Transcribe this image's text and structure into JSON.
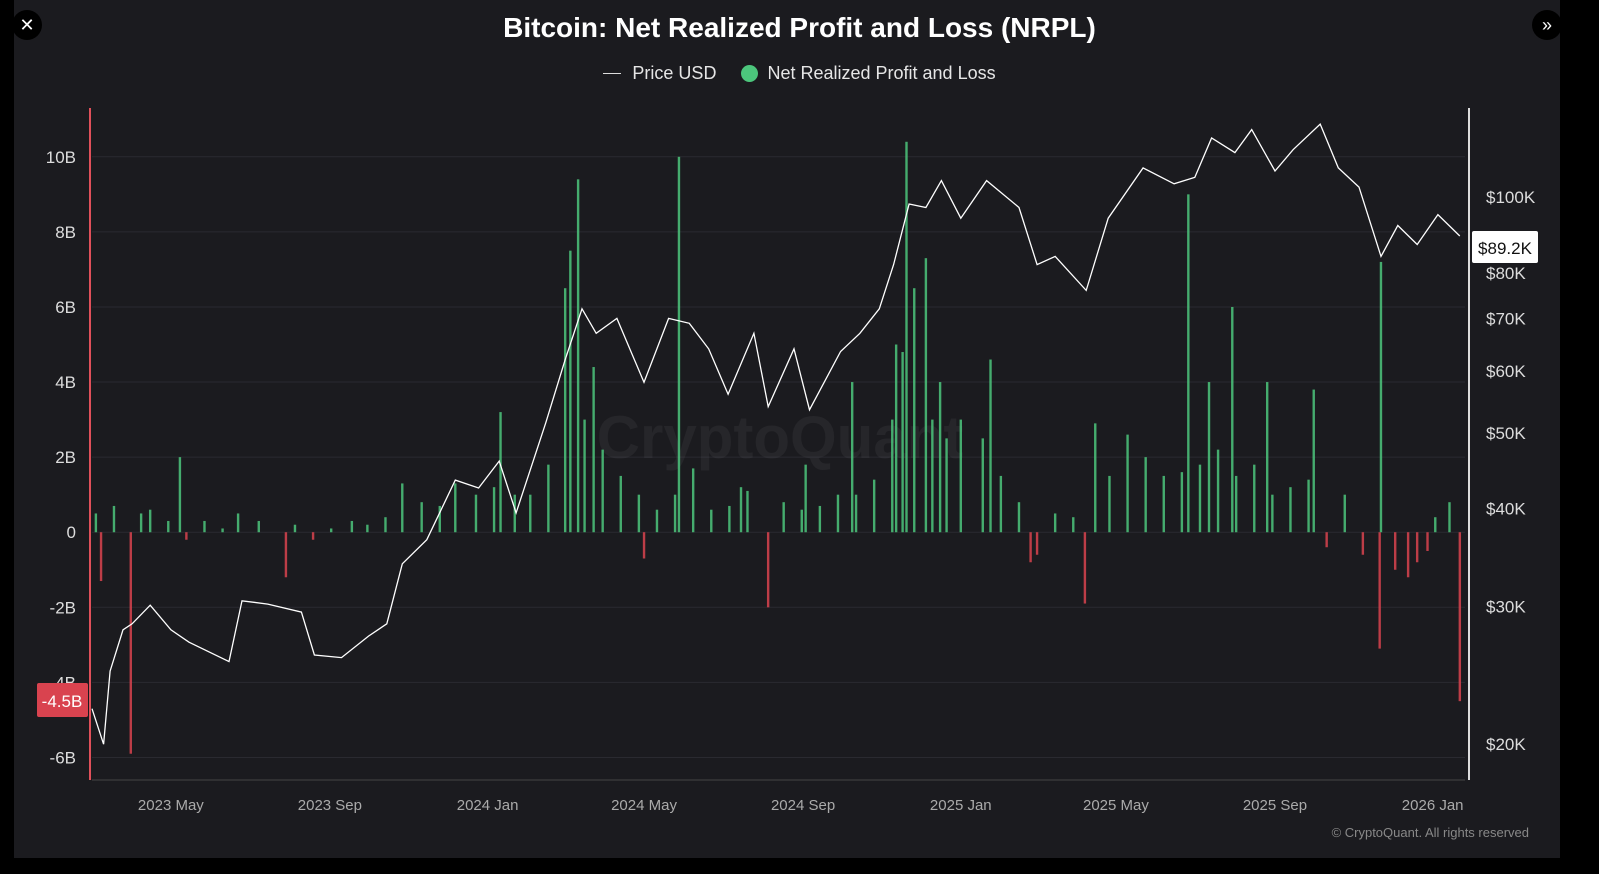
{
  "controls": {
    "close_icon": "close-icon",
    "expand_icon": "chevron-double-right-icon"
  },
  "colors": {
    "background": "#1b1b1f",
    "profit": "#4cc67c",
    "loss": "#d9434f",
    "price": "#ffffff",
    "left_axis": "#e0505a"
  },
  "watermark": "CryptoQuant",
  "copyright": "© CryptoQuant. All rights reserved",
  "chart_data": {
    "type": "bar+line",
    "title": "Bitcoin: Net Realized Profit and Loss (NRPL)",
    "legend": {
      "placement": "top",
      "entries": [
        "Price USD",
        "Net Realized Profit and Loss"
      ]
    },
    "left_axis": {
      "ticks": [
        10,
        8,
        6,
        4,
        2,
        0,
        -2,
        -4,
        -6
      ],
      "tick_labels": [
        "10B",
        "8B",
        "6B",
        "4B",
        "2B",
        "0",
        "-2B",
        "-4B",
        "-6B"
      ],
      "range": [
        -6.6,
        11.3
      ],
      "unit": "B"
    },
    "right_axis": {
      "scale": "log",
      "ticks": [
        100000,
        80000,
        70000,
        60000,
        50000,
        40000,
        30000,
        20000
      ],
      "tick_labels": [
        "$100K",
        "$80K",
        "$70K",
        "$60K",
        "$50K",
        "$40K",
        "$30K",
        "$20K"
      ],
      "range": [
        18000,
        130000
      ]
    },
    "x_axis": {
      "ticks": [
        "2023-05-01",
        "2023-09-01",
        "2024-01-01",
        "2024-05-01",
        "2024-09-01",
        "2025-01-01",
        "2025-05-01",
        "2025-09-01",
        "2026-01-01"
      ],
      "tick_labels": [
        "2023 May",
        "2023 Sep",
        "2024 Jan",
        "2024 May",
        "2024 Sep",
        "2025 Jan",
        "2025 May",
        "2025 Sep",
        "2026 Jan"
      ],
      "range": [
        "2023-03-01",
        "2026-01-26"
      ]
    },
    "grid": true,
    "current_badges": {
      "nrpl": "-4.5B",
      "price": "$89.2K"
    },
    "price": [
      [
        "2023-03-01",
        22200
      ],
      [
        "2023-03-10",
        20000
      ],
      [
        "2023-03-15",
        24800
      ],
      [
        "2023-03-25",
        28000
      ],
      [
        "2023-04-01",
        28500
      ],
      [
        "2023-04-15",
        30100
      ],
      [
        "2023-05-01",
        28000
      ],
      [
        "2023-05-15",
        27000
      ],
      [
        "2023-06-15",
        25500
      ],
      [
        "2023-06-25",
        30500
      ],
      [
        "2023-07-15",
        30200
      ],
      [
        "2023-08-10",
        29500
      ],
      [
        "2023-08-20",
        26000
      ],
      [
        "2023-09-10",
        25800
      ],
      [
        "2023-10-01",
        27500
      ],
      [
        "2023-10-15",
        28500
      ],
      [
        "2023-10-27",
        34000
      ],
      [
        "2023-11-15",
        36500
      ],
      [
        "2023-12-07",
        43500
      ],
      [
        "2023-12-25",
        42500
      ],
      [
        "2024-01-10",
        46000
      ],
      [
        "2024-01-23",
        39500
      ],
      [
        "2024-02-15",
        51500
      ],
      [
        "2024-03-01",
        62000
      ],
      [
        "2024-03-14",
        72000
      ],
      [
        "2024-03-25",
        67000
      ],
      [
        "2024-04-10",
        70000
      ],
      [
        "2024-04-20",
        64000
      ],
      [
        "2024-05-01",
        58000
      ],
      [
        "2024-05-20",
        70000
      ],
      [
        "2024-06-05",
        69000
      ],
      [
        "2024-06-20",
        64000
      ],
      [
        "2024-07-05",
        56000
      ],
      [
        "2024-07-25",
        67000
      ],
      [
        "2024-08-05",
        54000
      ],
      [
        "2024-08-25",
        64000
      ],
      [
        "2024-09-06",
        53500
      ],
      [
        "2024-09-30",
        63500
      ],
      [
        "2024-10-15",
        67000
      ],
      [
        "2024-10-30",
        72000
      ],
      [
        "2024-11-10",
        82000
      ],
      [
        "2024-11-22",
        98000
      ],
      [
        "2024-12-05",
        97000
      ],
      [
        "2024-12-17",
        105000
      ],
      [
        "2025-01-01",
        94000
      ],
      [
        "2025-01-21",
        105000
      ],
      [
        "2025-02-15",
        97000
      ],
      [
        "2025-03-01",
        82000
      ],
      [
        "2025-03-15",
        84000
      ],
      [
        "2025-04-08",
        76000
      ],
      [
        "2025-04-25",
        94000
      ],
      [
        "2025-05-22",
        109000
      ],
      [
        "2025-06-15",
        104000
      ],
      [
        "2025-07-01",
        106000
      ],
      [
        "2025-07-14",
        119000
      ],
      [
        "2025-08-01",
        114000
      ],
      [
        "2025-08-14",
        122000
      ],
      [
        "2025-09-01",
        108000
      ],
      [
        "2025-09-15",
        115000
      ],
      [
        "2025-10-06",
        124000
      ],
      [
        "2025-10-20",
        109000
      ],
      [
        "2025-11-05",
        103000
      ],
      [
        "2025-11-22",
        84000
      ],
      [
        "2025-12-05",
        92000
      ],
      [
        "2025-12-20",
        87000
      ],
      [
        "2026-01-05",
        95000
      ],
      [
        "2026-01-22",
        89200
      ]
    ],
    "nrpl": [
      [
        "2023-03-04",
        0.5
      ],
      [
        "2023-03-08",
        -1.3
      ],
      [
        "2023-03-18",
        0.7
      ],
      [
        "2023-03-31",
        -5.9
      ],
      [
        "2023-04-08",
        0.5
      ],
      [
        "2023-04-15",
        0.6
      ],
      [
        "2023-04-29",
        0.3
      ],
      [
        "2023-05-08",
        2.0
      ],
      [
        "2023-05-13",
        -0.2
      ],
      [
        "2023-05-27",
        0.3
      ],
      [
        "2023-06-10",
        0.1
      ],
      [
        "2023-06-22",
        0.5
      ],
      [
        "2023-07-08",
        0.3
      ],
      [
        "2023-07-29",
        -1.2
      ],
      [
        "2023-08-05",
        0.2
      ],
      [
        "2023-08-19",
        -0.2
      ],
      [
        "2023-09-02",
        0.1
      ],
      [
        "2023-09-18",
        0.3
      ],
      [
        "2023-09-30",
        0.2
      ],
      [
        "2023-10-14",
        0.4
      ],
      [
        "2023-10-27",
        1.3
      ],
      [
        "2023-11-11",
        0.8
      ],
      [
        "2023-11-25",
        0.7
      ],
      [
        "2023-12-07",
        1.3
      ],
      [
        "2023-12-23",
        1.0
      ],
      [
        "2024-01-06",
        1.2
      ],
      [
        "2024-01-11",
        3.2
      ],
      [
        "2024-01-22",
        1.0
      ],
      [
        "2024-02-03",
        1.0
      ],
      [
        "2024-02-17",
        1.8
      ],
      [
        "2024-03-01",
        6.5
      ],
      [
        "2024-03-05",
        7.5
      ],
      [
        "2024-03-11",
        9.4
      ],
      [
        "2024-03-16",
        3.0
      ],
      [
        "2024-03-23",
        4.4
      ],
      [
        "2024-03-30",
        2.2
      ],
      [
        "2024-04-13",
        1.5
      ],
      [
        "2024-04-27",
        1.0
      ],
      [
        "2024-05-01",
        -0.7
      ],
      [
        "2024-05-11",
        0.6
      ],
      [
        "2024-05-25",
        1.0
      ],
      [
        "2024-05-28",
        10.0
      ],
      [
        "2024-06-08",
        1.7
      ],
      [
        "2024-06-22",
        0.6
      ],
      [
        "2024-07-06",
        0.7
      ],
      [
        "2024-07-15",
        1.2
      ],
      [
        "2024-07-20",
        1.1
      ],
      [
        "2024-08-05",
        -2.0
      ],
      [
        "2024-08-17",
        0.8
      ],
      [
        "2024-08-31",
        0.6
      ],
      [
        "2024-09-03",
        1.8
      ],
      [
        "2024-09-14",
        0.7
      ],
      [
        "2024-09-28",
        1.0
      ],
      [
        "2024-10-09",
        4.0
      ],
      [
        "2024-10-12",
        1.0
      ],
      [
        "2024-10-26",
        1.4
      ],
      [
        "2024-11-09",
        3.0
      ],
      [
        "2024-11-12",
        5.0
      ],
      [
        "2024-11-17",
        4.8
      ],
      [
        "2024-11-20",
        10.4
      ],
      [
        "2024-11-26",
        6.5
      ],
      [
        "2024-12-05",
        7.3
      ],
      [
        "2024-12-10",
        3.0
      ],
      [
        "2024-12-16",
        4.0
      ],
      [
        "2024-12-21",
        2.5
      ],
      [
        "2025-01-01",
        3.0
      ],
      [
        "2025-01-18",
        2.5
      ],
      [
        "2025-01-24",
        4.6
      ],
      [
        "2025-02-01",
        1.5
      ],
      [
        "2025-02-15",
        0.8
      ],
      [
        "2025-02-24",
        -0.8
      ],
      [
        "2025-03-01",
        -0.6
      ],
      [
        "2025-03-15",
        0.5
      ],
      [
        "2025-03-29",
        0.4
      ],
      [
        "2025-04-07",
        -1.9
      ],
      [
        "2025-04-15",
        2.9
      ],
      [
        "2025-04-26",
        1.5
      ],
      [
        "2025-05-10",
        2.6
      ],
      [
        "2025-05-24",
        2.0
      ],
      [
        "2025-06-07",
        1.5
      ],
      [
        "2025-06-21",
        1.6
      ],
      [
        "2025-06-26",
        9.0
      ],
      [
        "2025-07-05",
        1.8
      ],
      [
        "2025-07-12",
        4.0
      ],
      [
        "2025-07-19",
        2.2
      ],
      [
        "2025-07-30",
        6.0
      ],
      [
        "2025-08-02",
        1.5
      ],
      [
        "2025-08-16",
        1.8
      ],
      [
        "2025-08-26",
        4.0
      ],
      [
        "2025-08-30",
        1.0
      ],
      [
        "2025-09-13",
        1.2
      ],
      [
        "2025-09-27",
        1.4
      ],
      [
        "2025-10-01",
        3.8
      ],
      [
        "2025-10-11",
        -0.4
      ],
      [
        "2025-10-25",
        1.0
      ],
      [
        "2025-11-08",
        -0.6
      ],
      [
        "2025-11-21",
        -3.1
      ],
      [
        "2025-11-22",
        7.2
      ],
      [
        "2025-12-03",
        -1.0
      ],
      [
        "2025-12-13",
        -1.2
      ],
      [
        "2025-12-20",
        -0.8
      ],
      [
        "2025-12-28",
        -0.5
      ],
      [
        "2026-01-03",
        0.4
      ],
      [
        "2026-01-14",
        0.8
      ],
      [
        "2026-01-22",
        -4.5
      ]
    ]
  }
}
